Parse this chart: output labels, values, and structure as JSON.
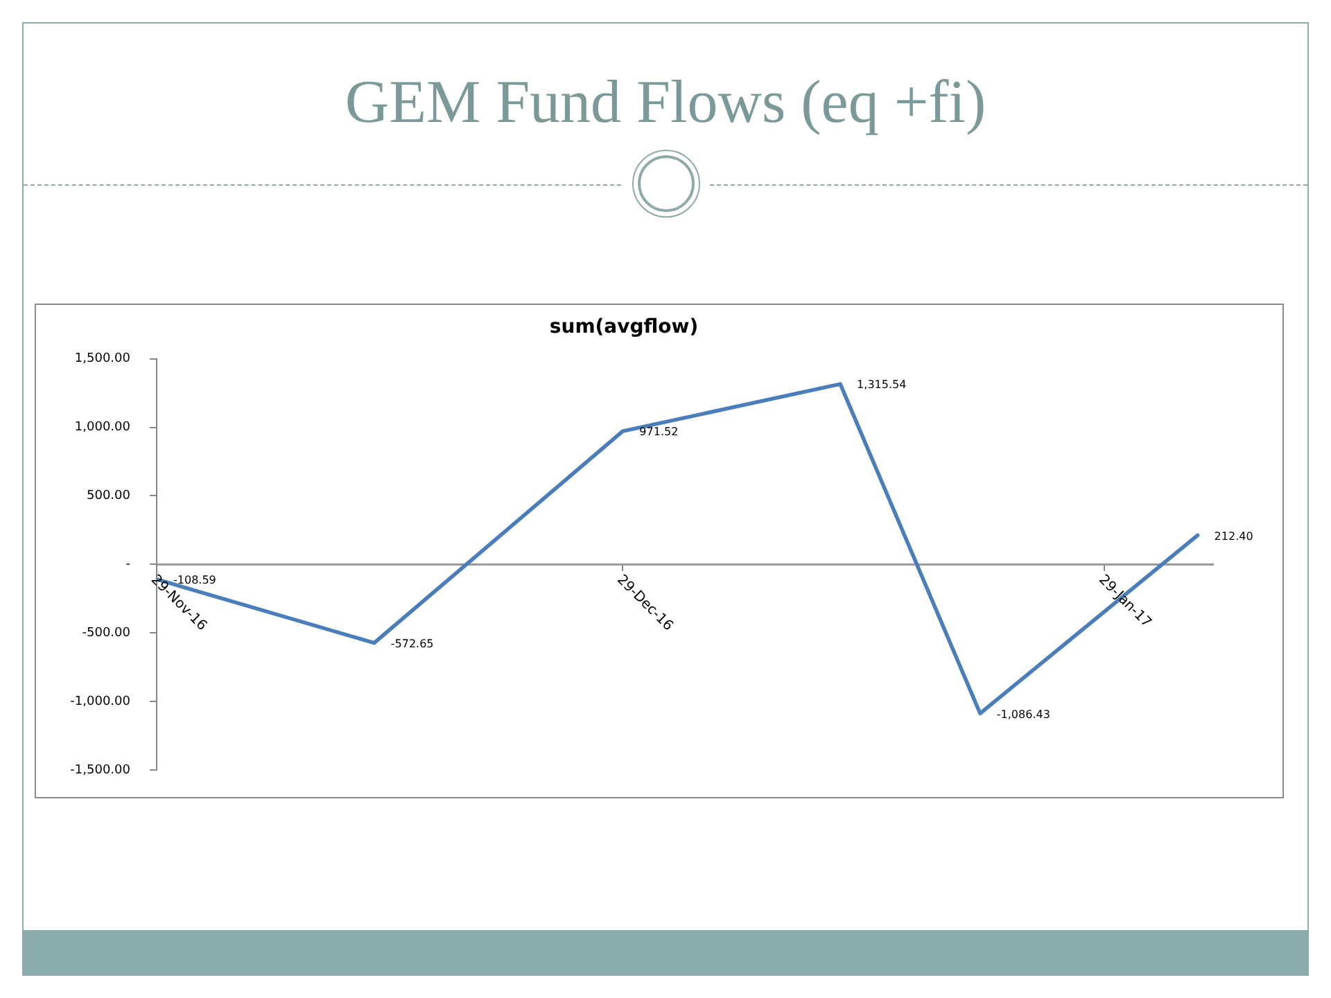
{
  "chart_data": {
    "type": "line",
    "title": "GEM Fund Flows (eq +fi)",
    "subtitle": "sum(avgflow)",
    "x": [
      "2016-11-29",
      "2016-12-13",
      "2016-12-29",
      "2017-01-12",
      "2017-01-21",
      "2017-02-04"
    ],
    "values": [
      -108.59,
      -572.65,
      971.52,
      1315.54,
      -1086.43,
      212.4
    ],
    "color": "#4a7ebb",
    "value_labels": [
      "-108.59",
      "-572.65",
      "971.52",
      "1,315.54",
      "-1,086.43",
      "212.40"
    ],
    "xlim": [
      "2016-11-29",
      "2017-02-05"
    ],
    "xticks": [
      {
        "value": "2016-11-29",
        "label": "29-Nov-16"
      },
      {
        "value": "2016-12-29",
        "label": "29-Dec-16"
      },
      {
        "value": "2017-01-29",
        "label": "29-Jan-17"
      }
    ],
    "ylim": [
      -1500,
      1500
    ],
    "yticks": [
      {
        "value": -1500,
        "label": "-1,500.00"
      },
      {
        "value": -1000,
        "label": "-1,000.00"
      },
      {
        "value": -500,
        "label": "-500.00"
      },
      {
        "value": 0,
        "label": "-"
      },
      {
        "value": 500,
        "label": "500.00"
      },
      {
        "value": 1000,
        "label": "1,000.00"
      },
      {
        "value": 1500,
        "label": "1,500.00"
      }
    ]
  }
}
